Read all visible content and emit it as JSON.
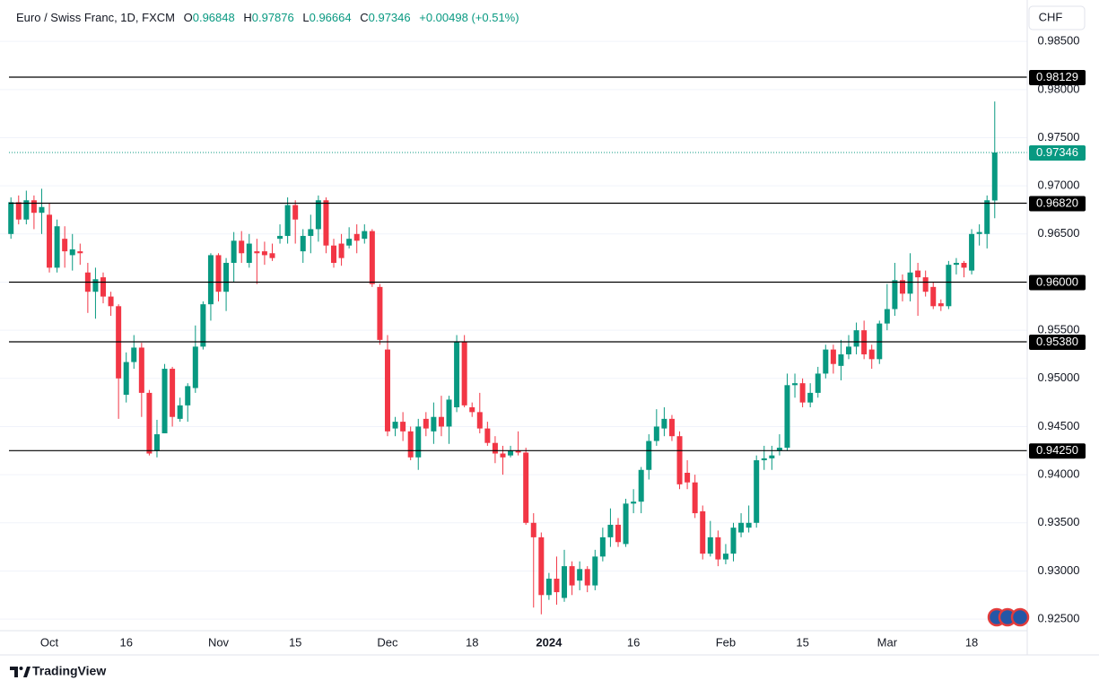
{
  "chart_data": {
    "type": "candlestick",
    "title": "Euro / Swiss Franc, 1D, FXCM",
    "ohlc_labels": [
      "O",
      "H",
      "L",
      "C"
    ],
    "change": "+0.00498 (+0.51%)",
    "currency": "CHF",
    "logo": "TradingView",
    "up_color": "#089981",
    "down_color": "#f23645",
    "line_color": "#000000",
    "grid": true,
    "categories": [
      null,
      null,
      null,
      null,
      null,
      "Oct",
      null,
      null,
      null,
      null,
      null,
      null,
      null,
      null,
      null,
      "16",
      null,
      null,
      null,
      null,
      null,
      null,
      null,
      null,
      null,
      null,
      null,
      "Nov",
      null,
      null,
      null,
      null,
      null,
      null,
      null,
      null,
      null,
      "15",
      null,
      null,
      null,
      null,
      null,
      null,
      null,
      null,
      null,
      null,
      null,
      "Dec",
      null,
      null,
      null,
      null,
      null,
      null,
      null,
      null,
      null,
      null,
      "18",
      null,
      null,
      null,
      null,
      null,
      null,
      null,
      null,
      null,
      "2024",
      null,
      null,
      null,
      null,
      null,
      null,
      null,
      null,
      null,
      null,
      "16",
      null,
      null,
      null,
      null,
      null,
      null,
      null,
      null,
      null,
      null,
      null,
      "Feb",
      null,
      null,
      null,
      null,
      null,
      null,
      null,
      null,
      null,
      "15",
      null,
      null,
      null,
      null,
      null,
      null,
      null,
      null,
      null,
      null,
      "Mar",
      null,
      null,
      null,
      null,
      null,
      null,
      null,
      null,
      null,
      null,
      "18",
      null,
      null,
      null
    ],
    "open": [
      0.965,
      0.9683,
      0.9665,
      0.9685,
      0.9672,
      0.967,
      0.9615,
      0.9645,
      0.9628,
      0.9632,
      0.961,
      0.959,
      0.9605,
      0.9585,
      0.9575,
      0.9483,
      0.9517,
      0.9532,
      0.9485,
      0.9425,
      0.9443,
      0.951,
      0.9458,
      0.9472,
      0.949,
      0.9533,
      0.9577,
      0.9628,
      0.959,
      0.962,
      0.9643,
      0.962,
      0.9632,
      0.9632,
      0.963,
      0.9645,
      0.9648,
      0.968,
      0.9632,
      0.9648,
      0.9655,
      0.9685,
      0.9638,
      0.964,
      0.9638,
      0.965,
      0.9645,
      0.9653,
      0.9595,
      0.953,
      0.9448,
      0.9455,
      0.9445,
      0.9418,
      0.9458,
      0.9445,
      0.946,
      0.945,
      0.947,
      0.9538,
      0.947,
      0.9465,
      0.9448,
      0.9433,
      0.9422,
      0.942,
      0.9425,
      0.9423,
      0.935,
      0.9335,
      0.9275,
      0.9292,
      0.9272,
      0.9305,
      0.929,
      0.9302,
      0.9285,
      0.9315,
      0.9335,
      0.9348,
      0.9328,
      0.937,
      0.9372,
      0.9405,
      0.9435,
      0.9448,
      0.9458,
      0.944,
      0.9402,
      0.9392,
      0.9362,
      0.9318,
      0.9335,
      0.9312,
      0.9318,
      0.934,
      0.9345,
      0.935,
      0.9415,
      0.9417,
      0.9425,
      0.9428,
      0.9493,
      0.9495,
      0.9475,
      0.9485,
      0.9505,
      0.953,
      0.9513,
      0.9525,
      0.9533,
      0.955,
      0.953,
      0.952,
      0.9557,
      0.9572,
      0.9602,
      0.9588,
      0.9612,
      0.9605,
      0.9595,
      0.9578,
      0.9575,
      0.9618,
      0.962,
      0.9612,
      0.965,
      0.965,
      0.96848
    ],
    "high": [
      0.9688,
      0.969,
      0.9695,
      0.969,
      0.9697,
      0.9682,
      0.9665,
      0.9658,
      0.965,
      0.964,
      0.962,
      0.9615,
      0.961,
      0.959,
      0.9577,
      0.9527,
      0.9545,
      0.9537,
      0.9488,
      0.9457,
      0.9515,
      0.9512,
      0.948,
      0.9495,
      0.9555,
      0.958,
      0.963,
      0.963,
      0.9625,
      0.9652,
      0.9653,
      0.965,
      0.9645,
      0.9642,
      0.964,
      0.966,
      0.9688,
      0.9685,
      0.9655,
      0.967,
      0.969,
      0.9688,
      0.9645,
      0.965,
      0.9657,
      0.966,
      0.966,
      0.9655,
      0.9598,
      0.9545,
      0.946,
      0.9465,
      0.945,
      0.9458,
      0.9465,
      0.9475,
      0.9482,
      0.9482,
      0.9545,
      0.9545,
      0.9475,
      0.9485,
      0.9455,
      0.944,
      0.943,
      0.943,
      0.9445,
      0.9428,
      0.936,
      0.934,
      0.9298,
      0.9315,
      0.9322,
      0.931,
      0.931,
      0.9305,
      0.9322,
      0.9345,
      0.9365,
      0.9355,
      0.9375,
      0.9385,
      0.9408,
      0.9442,
      0.9468,
      0.947,
      0.9462,
      0.9445,
      0.9415,
      0.94,
      0.9368,
      0.9352,
      0.9342,
      0.9328,
      0.935,
      0.936,
      0.9368,
      0.942,
      0.943,
      0.943,
      0.9442,
      0.9505,
      0.9505,
      0.95,
      0.9495,
      0.9512,
      0.9535,
      0.9535,
      0.954,
      0.9545,
      0.9558,
      0.956,
      0.9535,
      0.956,
      0.9598,
      0.962,
      0.9608,
      0.963,
      0.962,
      0.9612,
      0.96,
      0.9582,
      0.9622,
      0.9625,
      0.9622,
      0.9655,
      0.966,
      0.969,
      0.97876
    ],
    "low": [
      0.9645,
      0.966,
      0.966,
      0.9655,
      0.965,
      0.961,
      0.961,
      0.9615,
      0.9612,
      0.9618,
      0.9568,
      0.9562,
      0.9578,
      0.9565,
      0.9458,
      0.9475,
      0.951,
      0.946,
      0.942,
      0.9418,
      0.9443,
      0.945,
      0.9455,
      0.9455,
      0.9485,
      0.953,
      0.956,
      0.958,
      0.957,
      0.96,
      0.962,
      0.9615,
      0.9598,
      0.9618,
      0.9622,
      0.964,
      0.964,
      0.964,
      0.962,
      0.963,
      0.9642,
      0.963,
      0.9615,
      0.9617,
      0.9635,
      0.963,
      0.964,
      0.9595,
      0.9535,
      0.944,
      0.944,
      0.9435,
      0.9415,
      0.9405,
      0.944,
      0.9432,
      0.944,
      0.9432,
      0.9465,
      0.947,
      0.946,
      0.9443,
      0.943,
      0.9412,
      0.94,
      0.9418,
      0.942,
      0.9348,
      0.9262,
      0.9255,
      0.927,
      0.9265,
      0.9268,
      0.9275,
      0.928,
      0.9278,
      0.928,
      0.931,
      0.9325,
      0.9325,
      0.9325,
      0.936,
      0.936,
      0.9395,
      0.943,
      0.944,
      0.9435,
      0.9385,
      0.9385,
      0.9355,
      0.9312,
      0.9315,
      0.9305,
      0.9307,
      0.931,
      0.9335,
      0.934,
      0.9345,
      0.9405,
      0.9405,
      0.942,
      0.9425,
      0.948,
      0.947,
      0.947,
      0.948,
      0.95,
      0.9505,
      0.9498,
      0.952,
      0.9525,
      0.952,
      0.951,
      0.9515,
      0.955,
      0.9565,
      0.958,
      0.958,
      0.9565,
      0.9585,
      0.9572,
      0.957,
      0.9572,
      0.9608,
      0.9605,
      0.9608,
      0.9638,
      0.9635,
      0.96664
    ],
    "close": [
      0.9683,
      0.9665,
      0.9685,
      0.9672,
      0.9678,
      0.9615,
      0.9658,
      0.9632,
      0.9634,
      0.963,
      0.959,
      0.9603,
      0.9585,
      0.9575,
      0.95,
      0.9517,
      0.9532,
      0.9485,
      0.9422,
      0.9442,
      0.951,
      0.946,
      0.9472,
      0.9492,
      0.9533,
      0.9577,
      0.9628,
      0.959,
      0.962,
      0.9643,
      0.963,
      0.964,
      0.963,
      0.9628,
      0.9625,
      0.9648,
      0.968,
      0.9665,
      0.9648,
      0.9655,
      0.9685,
      0.9638,
      0.962,
      0.9625,
      0.9645,
      0.9643,
      0.9653,
      0.9598,
      0.954,
      0.9445,
      0.9455,
      0.9445,
      0.9418,
      0.945,
      0.9448,
      0.946,
      0.945,
      0.9478,
      0.9538,
      0.9472,
      0.9465,
      0.9448,
      0.9433,
      0.9422,
      0.9418,
      0.9425,
      0.9423,
      0.935,
      0.9335,
      0.9275,
      0.9292,
      0.9278,
      0.9305,
      0.9285,
      0.9302,
      0.9285,
      0.9315,
      0.9335,
      0.9348,
      0.933,
      0.937,
      0.9372,
      0.9405,
      0.9435,
      0.945,
      0.9458,
      0.944,
      0.939,
      0.9392,
      0.936,
      0.9318,
      0.9335,
      0.9312,
      0.9318,
      0.9345,
      0.935,
      0.935,
      0.9415,
      0.9417,
      0.942,
      0.9428,
      0.9493,
      0.9495,
      0.9475,
      0.9485,
      0.9505,
      0.953,
      0.9515,
      0.9525,
      0.9533,
      0.955,
      0.9525,
      0.952,
      0.9557,
      0.9572,
      0.9602,
      0.9588,
      0.961,
      0.9605,
      0.959,
      0.9575,
      0.9575,
      0.9618,
      0.962,
      0.9615,
      0.965,
      0.9652,
      0.9685,
      0.97346
    ],
    "ylim": [
      0.9238,
      0.9893
    ],
    "yticks": [
      {
        "value": 0.925,
        "label": "0.92500"
      },
      {
        "value": 0.93,
        "label": "0.93000"
      },
      {
        "value": 0.935,
        "label": "0.93500"
      },
      {
        "value": 0.94,
        "label": "0.94000"
      },
      {
        "value": 0.945,
        "label": "0.94500"
      },
      {
        "value": 0.95,
        "label": "0.95000"
      },
      {
        "value": 0.955,
        "label": "0.95500"
      },
      {
        "value": 0.96,
        "label": "0.96000"
      },
      {
        "value": 0.965,
        "label": "0.96500"
      },
      {
        "value": 0.97,
        "label": "0.97000"
      },
      {
        "value": 0.975,
        "label": "0.97500"
      },
      {
        "value": 0.98,
        "label": "0.98000"
      },
      {
        "value": 0.985,
        "label": "0.98500"
      }
    ],
    "price_lines": [
      0.98129,
      {
        "value": 0.9682,
        "label": "0.96820"
      },
      {
        "value": 0.96,
        "label": "0.96000"
      },
      {
        "value": 0.9538,
        "label": "0.95380"
      },
      {
        "value": 0.9425,
        "label": "0.94250"
      }
    ]
  }
}
